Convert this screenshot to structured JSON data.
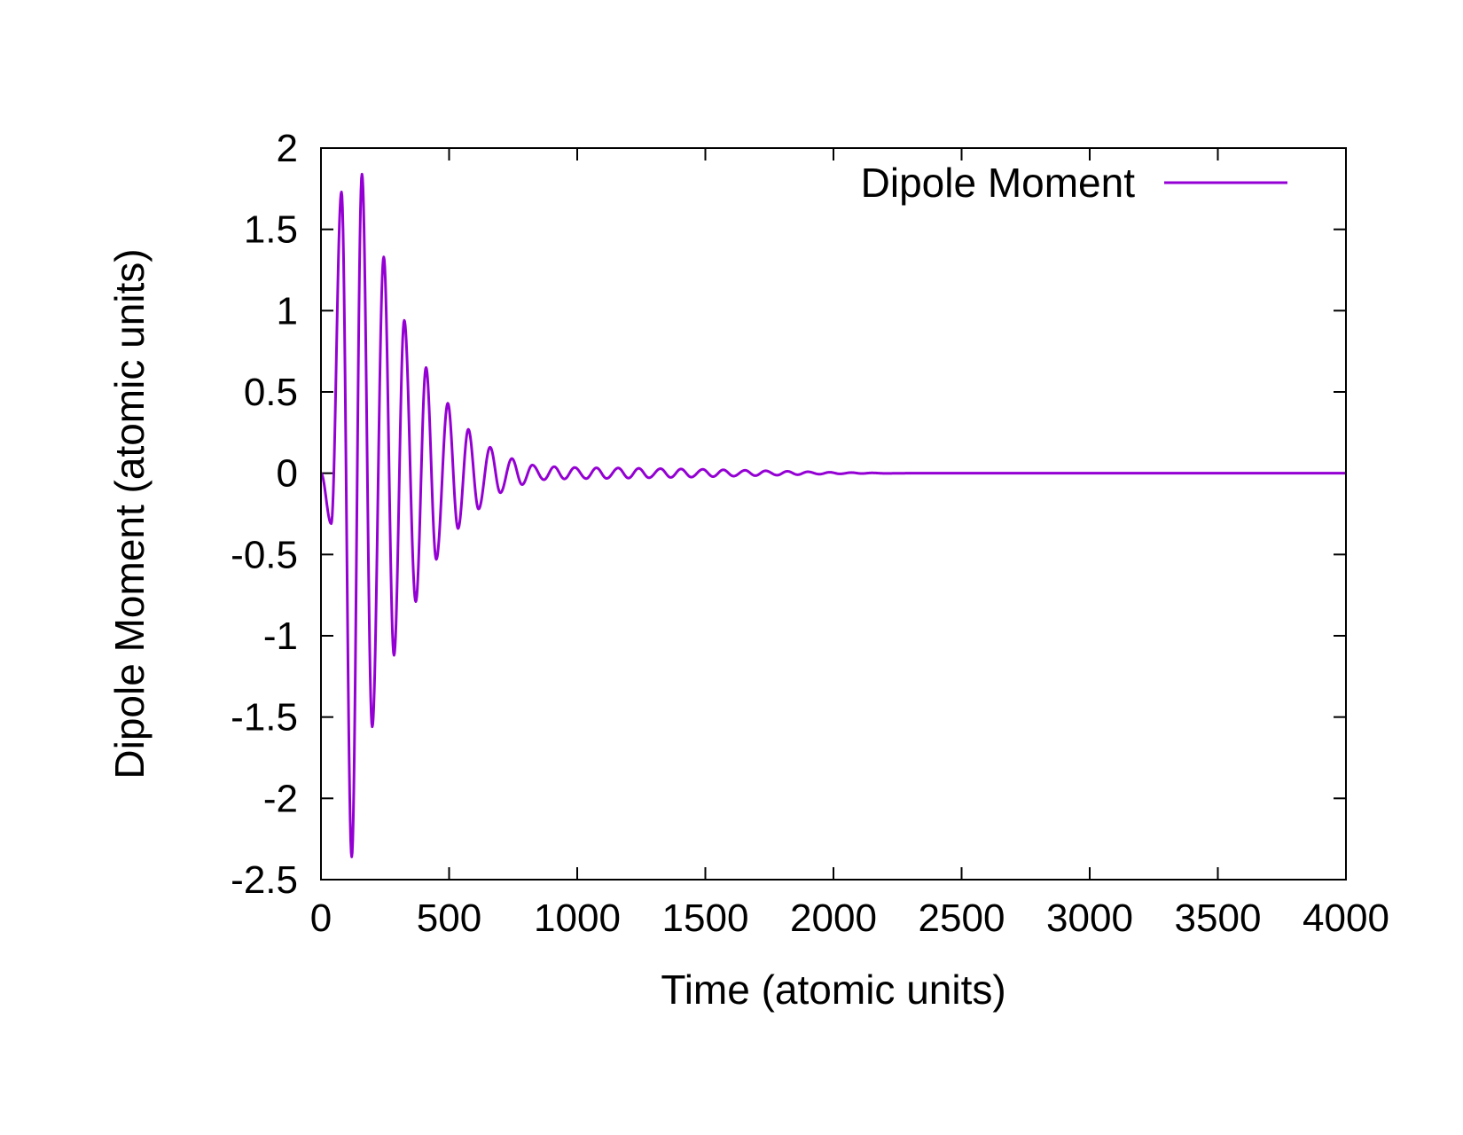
{
  "chart_data": {
    "type": "line",
    "title": "",
    "xlabel": "Time (atomic units)",
    "ylabel": "Dipole Moment (atomic units)",
    "xlim": [
      0,
      4000
    ],
    "ylim": [
      -2.5,
      2
    ],
    "x_ticks": [
      0,
      500,
      1000,
      1500,
      2000,
      2500,
      3000,
      3500,
      4000
    ],
    "y_ticks": [
      2,
      1.5,
      1,
      0.5,
      0,
      -0.5,
      -1,
      -1.5,
      -2,
      -2.5
    ],
    "x_tick_labels": [
      "0",
      "500",
      "1000",
      "1500",
      "2000",
      "2500",
      "3000",
      "3500",
      "4000"
    ],
    "y_tick_labels": [
      "2",
      "1.5",
      "1",
      "0.5",
      "0",
      "-0.5",
      "-1",
      "-1.5",
      "-2",
      "-2.5"
    ],
    "grid": false,
    "legend": {
      "position": "top-right",
      "entries": [
        "Dipole Moment"
      ]
    },
    "series": [
      {
        "name": "Dipole Moment",
        "color": "#9400d3",
        "peaks": [
          [
            0,
            0
          ],
          [
            40,
            -0.31
          ],
          [
            80,
            1.73
          ],
          [
            120,
            -2.36
          ],
          [
            160,
            1.84
          ],
          [
            200,
            -1.56
          ],
          [
            245,
            1.33
          ],
          [
            285,
            -1.12
          ],
          [
            325,
            0.94
          ],
          [
            370,
            -0.79
          ],
          [
            410,
            0.65
          ],
          [
            450,
            -0.53
          ],
          [
            495,
            0.43
          ],
          [
            535,
            -0.34
          ],
          [
            575,
            0.27
          ],
          [
            615,
            -0.22
          ],
          [
            660,
            0.16
          ],
          [
            700,
            -0.12
          ],
          [
            745,
            0.09
          ],
          [
            785,
            -0.07
          ],
          [
            825,
            0.05
          ],
          [
            870,
            -0.04
          ],
          [
            910,
            0.04
          ],
          [
            950,
            -0.035
          ],
          [
            990,
            0.035
          ],
          [
            1035,
            -0.033
          ],
          [
            1075,
            0.033
          ],
          [
            1115,
            -0.032
          ],
          [
            1160,
            0.032
          ],
          [
            1200,
            -0.03
          ],
          [
            1240,
            0.03
          ],
          [
            1280,
            -0.028
          ],
          [
            1325,
            0.028
          ],
          [
            1365,
            -0.026
          ],
          [
            1405,
            0.026
          ],
          [
            1445,
            -0.024
          ],
          [
            1490,
            0.024
          ],
          [
            1530,
            -0.021
          ],
          [
            1570,
            0.021
          ],
          [
            1610,
            -0.018
          ],
          [
            1655,
            0.018
          ],
          [
            1695,
            -0.015
          ],
          [
            1735,
            0.015
          ],
          [
            1780,
            -0.012
          ],
          [
            1820,
            0.012
          ],
          [
            1860,
            -0.009
          ],
          [
            1900,
            0.009
          ],
          [
            1945,
            -0.006
          ],
          [
            1985,
            0.006
          ],
          [
            2025,
            -0.004
          ],
          [
            2070,
            0.004
          ],
          [
            2110,
            -0.002
          ],
          [
            2150,
            0.002
          ],
          [
            2200,
            -0.001
          ],
          [
            2300,
            0
          ],
          [
            4000,
            0
          ]
        ]
      }
    ]
  }
}
